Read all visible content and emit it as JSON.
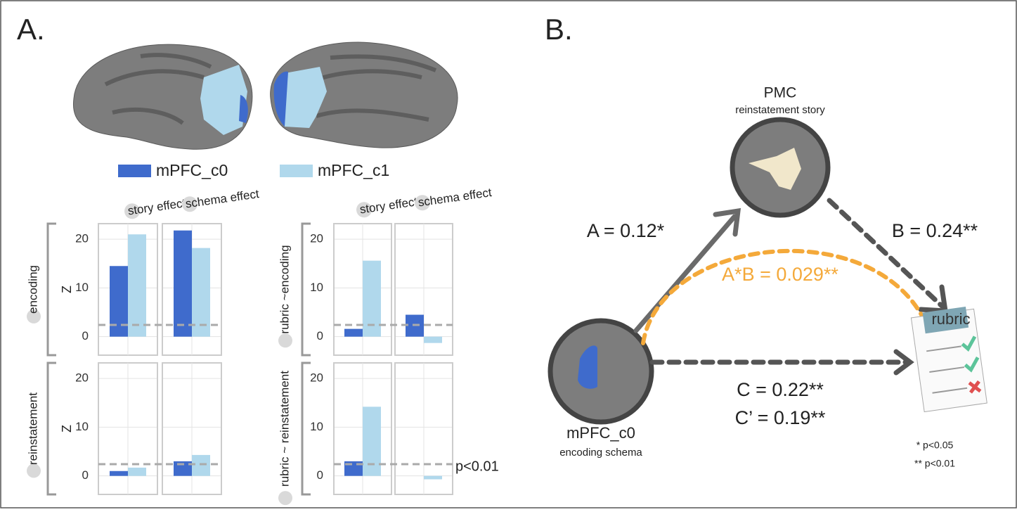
{
  "panel_a": {
    "label": "A.",
    "legend": [
      {
        "name": "mPFC_c0",
        "color": "#3f6bcc"
      },
      {
        "name": "mPFC_c1",
        "color": "#b0d8ec"
      }
    ],
    "threshold_label": "p<0.01"
  },
  "chart_data": [
    {
      "type": "bar",
      "categories": [
        "story effect",
        "schema effect"
      ],
      "ylim": [
        -3.8,
        23.2
      ],
      "yticks": [
        0,
        10,
        20
      ],
      "threshold": 2.4,
      "grid": true,
      "rows": [
        {
          "row_label": "encoding",
          "y_label": "Z",
          "series": [
            {
              "values": [
                14.5,
                21.8
              ]
            },
            {
              "values": [
                21,
                18.2
              ]
            }
          ]
        },
        {
          "row_label": "reinstatement",
          "y_label": "Z",
          "series": [
            {
              "values": [
                1,
                3
              ]
            },
            {
              "values": [
                1.7,
                4.3
              ]
            }
          ]
        }
      ]
    },
    {
      "type": "bar",
      "categories": [
        "story effect",
        "schema effect"
      ],
      "ylim": [
        -3.8,
        23.2
      ],
      "yticks": [
        0,
        10,
        20
      ],
      "threshold": 2.4,
      "grid": true,
      "rows": [
        {
          "row_label": "rubric ~encoding",
          "series": [
            {
              "values": [
                1.6,
                4.5
              ]
            },
            {
              "values": [
                15.6,
                -1.3
              ]
            }
          ]
        },
        {
          "row_label": "rubric ~ reinstatement",
          "series": [
            {
              "values": [
                3,
                0
              ]
            },
            {
              "values": [
                14.2,
                -0.7
              ]
            }
          ]
        }
      ]
    }
  ],
  "diagram": {
    "label": "B.",
    "nodes": [
      {
        "label": "PMC",
        "sublabel": "reinstatement story"
      },
      {
        "label": "mPFC_c0",
        "sublabel": "encoding schema"
      },
      {
        "label": "rubric"
      }
    ],
    "edges": [
      "A = 0.12*",
      "B = 0.24**",
      "A*B = 0.029**",
      "C = 0.22**",
      "C’ = 0.19**"
    ],
    "notes": [
      "* p<0.05",
      "** p<0.01"
    ]
  }
}
